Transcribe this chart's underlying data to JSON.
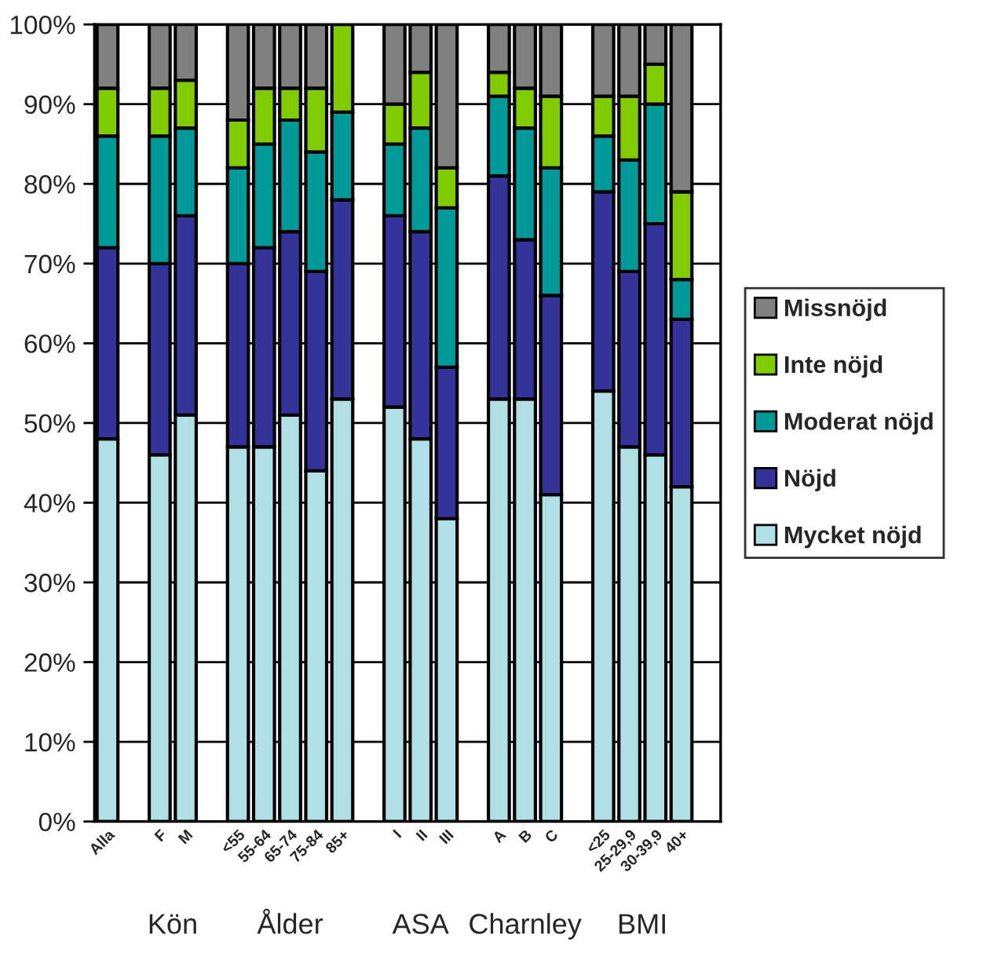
{
  "chart_data": {
    "type": "bar",
    "stacked": true,
    "categories": [
      "Alla",
      null,
      "F",
      "M",
      null,
      "<55",
      "55-64",
      "65-74",
      "75-84",
      "85+",
      null,
      "I",
      "II",
      "III",
      null,
      "A",
      "B",
      "C",
      null,
      "<25",
      "25-29,9",
      "30-39,9",
      "40+",
      null
    ],
    "series": [
      {
        "name": "Mycket nöjd",
        "color": "#b0e0e6",
        "values": [
          48,
          null,
          46,
          51,
          null,
          47,
          47,
          51,
          44,
          53,
          null,
          52,
          48,
          38,
          null,
          53,
          53,
          41,
          null,
          54,
          47,
          46,
          42,
          null
        ]
      },
      {
        "name": "Nöjd",
        "color": "#333399",
        "values": [
          24,
          null,
          24,
          25,
          null,
          23,
          25,
          23,
          25,
          25,
          null,
          24,
          26,
          19,
          null,
          28,
          20,
          25,
          null,
          25,
          22,
          29,
          21,
          null
        ]
      },
      {
        "name": "Moderat nöjd",
        "color": "#009999",
        "values": [
          14,
          null,
          16,
          11,
          null,
          12,
          13,
          14,
          15,
          11,
          null,
          9,
          13,
          20,
          null,
          10,
          14,
          16,
          null,
          7,
          14,
          15,
          5,
          null
        ]
      },
      {
        "name": "Inte nöjd",
        "color": "#80cc00",
        "values": [
          6,
          null,
          6,
          6,
          null,
          6,
          7,
          4,
          8,
          11,
          null,
          5,
          7,
          5,
          null,
          3,
          5,
          9,
          null,
          5,
          8,
          5,
          11,
          null
        ]
      },
      {
        "name": "Missnöjd",
        "color": "#808080",
        "values": [
          8,
          null,
          8,
          7,
          null,
          12,
          8,
          8,
          8,
          0,
          null,
          10,
          6,
          18,
          null,
          6,
          8,
          9,
          null,
          9,
          9,
          5,
          21,
          null
        ]
      }
    ],
    "ylim": [
      0,
      100
    ],
    "yticks": [
      {
        "value": 0,
        "label": "0%"
      },
      {
        "value": 10,
        "label": "10%"
      },
      {
        "value": 20,
        "label": "20%"
      },
      {
        "value": 30,
        "label": "30%"
      },
      {
        "value": 40,
        "label": "40%"
      },
      {
        "value": 50,
        "label": "50%"
      },
      {
        "value": 60,
        "label": "60%"
      },
      {
        "value": 70,
        "label": "70%"
      },
      {
        "value": 80,
        "label": "80%"
      },
      {
        "value": 90,
        "label": "90%"
      },
      {
        "value": 100,
        "label": "100%"
      }
    ],
    "grid": "y",
    "legend": "right",
    "annotations": [
      "Kön",
      "Ålder",
      "ASA",
      "Charnley",
      "BMI"
    ]
  }
}
